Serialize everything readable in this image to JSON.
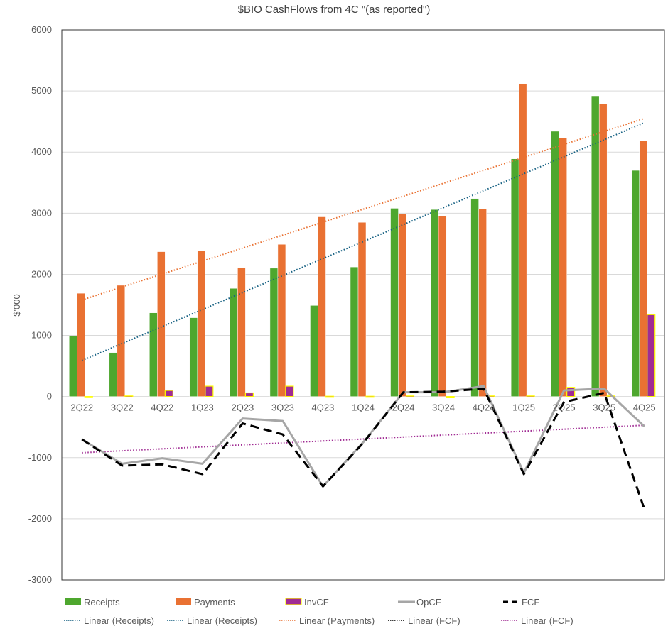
{
  "chart_data": {
    "type": "bar",
    "title": "$BIO CashFlows from 4C \"(as reported\")",
    "xlabel": "",
    "ylabel": "$'000",
    "ylim": [
      -3000,
      6000
    ],
    "yticks": [
      6000,
      5000,
      4000,
      3000,
      2000,
      1000,
      0,
      -1000,
      -2000,
      -3000
    ],
    "grid": true,
    "legend_position": "bottom",
    "categories": [
      "2Q22",
      "3Q22",
      "4Q22",
      "1Q23",
      "2Q23",
      "3Q23",
      "4Q23",
      "1Q24",
      "2Q24",
      "3Q24",
      "4Q24",
      "1Q25",
      "2Q25",
      "3Q25",
      "4Q25"
    ],
    "series": [
      {
        "name": "Receipts",
        "kind": "bar",
        "color": "#4EA72E",
        "values": [
          990,
          720,
          1370,
          1290,
          1770,
          2100,
          1490,
          2120,
          3080,
          3060,
          3240,
          3890,
          4340,
          4920,
          3700
        ]
      },
      {
        "name": "Payments",
        "kind": "bar",
        "color": "#E97132",
        "values": [
          1690,
          1820,
          2370,
          2380,
          2110,
          2490,
          2940,
          2850,
          2990,
          2950,
          3070,
          5120,
          4230,
          4790,
          4180
        ]
      },
      {
        "name": "InvCF",
        "kind": "bar",
        "color": "#A02B93",
        "edge": "#FFFF00",
        "values": [
          -10,
          10,
          100,
          170,
          60,
          170,
          5,
          5,
          10,
          -20,
          10,
          10,
          150,
          10,
          1340
        ]
      },
      {
        "name": "OpCF",
        "kind": "line",
        "color": "#A6A6A6",
        "values": [
          -700,
          -1100,
          -1010,
          -1100,
          -360,
          -400,
          -1470,
          -750,
          70,
          70,
          170,
          -1250,
          100,
          130,
          -490
        ]
      },
      {
        "name": "FCF",
        "kind": "dashed-line",
        "color": "#000000",
        "values": [
          -700,
          -1130,
          -1110,
          -1270,
          -440,
          -620,
          -1470,
          -760,
          70,
          80,
          130,
          -1270,
          -90,
          60,
          -1840
        ]
      }
    ],
    "trendlines": [
      {
        "name": "Linear (Receipts)",
        "color": "#156082",
        "from": 590,
        "to": 4480,
        "draw": true
      },
      {
        "name": "Linear (Receipts)",
        "color": "#156082",
        "from": 590,
        "to": 4480,
        "draw": false
      },
      {
        "name": "Linear (Payments)",
        "color": "#E97132",
        "from": 1580,
        "to": 4550,
        "draw": true
      },
      {
        "name": "Linear (FCF)",
        "color": "#000000",
        "from": -920,
        "to": -470,
        "draw": false
      },
      {
        "name": "Linear (FCF)",
        "color": "#A02B93",
        "from": -920,
        "to": -470,
        "draw": true
      }
    ]
  }
}
